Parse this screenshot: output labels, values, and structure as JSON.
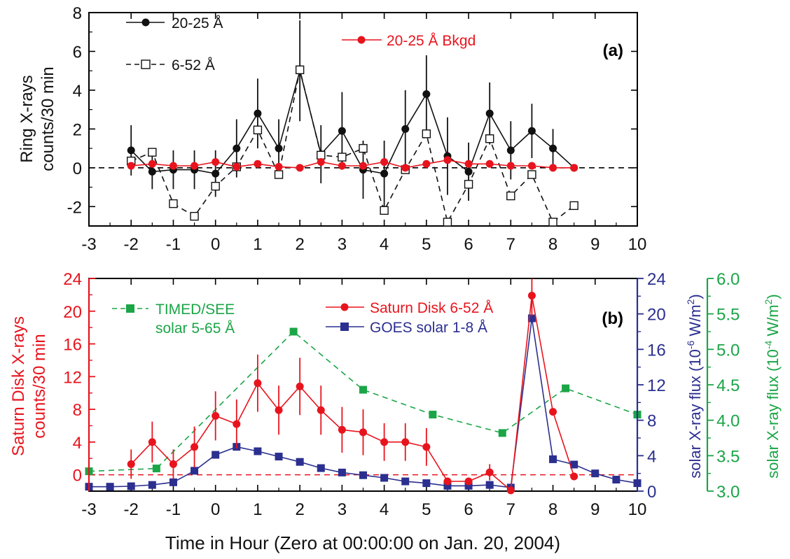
{
  "chart_data": [
    {
      "type": "line",
      "panel_label": "(a)",
      "ylabel": [
        "Ring X-rays",
        "counts/30 min"
      ],
      "xlim": [
        -3,
        10
      ],
      "ylim": [
        -3,
        8
      ],
      "xticks": [
        -3,
        -2,
        -1,
        0,
        1,
        2,
        3,
        4,
        5,
        6,
        7,
        8,
        9,
        10
      ],
      "yticks": [
        -2,
        0,
        2,
        4,
        6,
        8
      ],
      "zero_line": 0,
      "series": [
        {
          "name": "20-25 Å",
          "color": "#111111",
          "marker": "filled-circle",
          "dash": "solid",
          "x": [
            -2,
            -1.5,
            -1,
            -0.5,
            0,
            0.5,
            1,
            1.5,
            2,
            2.5,
            3,
            3.5,
            4,
            4.5,
            5,
            5.5,
            6,
            6.5,
            7,
            7.5,
            8,
            8.5
          ],
          "y": [
            0.9,
            -0.2,
            -0.1,
            -0.1,
            -0.3,
            1.0,
            2.8,
            1.0,
            5.0,
            0.7,
            1.9,
            -0.1,
            -0.3,
            2.0,
            3.8,
            0.6,
            -0.2,
            2.8,
            0.9,
            1.9,
            1.0,
            0.0
          ],
          "err": [
            1.3,
            0.9,
            1.0,
            1.0,
            1.2,
            1.5,
            1.8,
            1.5,
            2.6,
            1.5,
            2.0,
            1.5,
            1.7,
            2.0,
            2.0,
            2.0,
            1.5,
            1.6,
            1.5,
            1.4,
            1.0,
            0
          ]
        },
        {
          "name": "6-52 Å",
          "color": "#111111",
          "marker": "open-square",
          "dash": "dashed",
          "x": [
            -2,
            -1.5,
            -1,
            -0.5,
            0,
            0.5,
            1,
            1.5,
            2,
            2.5,
            3,
            3.5,
            4,
            4.5,
            5,
            5.5,
            6,
            6.5,
            7,
            7.5,
            8,
            8.5
          ],
          "y": [
            0.35,
            0.8,
            -1.85,
            -2.5,
            -0.95,
            0.05,
            1.95,
            -0.35,
            5.05,
            0.65,
            0.55,
            1.0,
            -2.2,
            -0.1,
            1.75,
            -2.8,
            -0.85,
            1.5,
            -1.45,
            -0.35,
            -2.8,
            -1.95
          ],
          "err": [
            0,
            0,
            0,
            0,
            0,
            0,
            0,
            0,
            0,
            0,
            0,
            0,
            0,
            0,
            0,
            0,
            0,
            0,
            0,
            0,
            0,
            0
          ]
        },
        {
          "name": "20-25 Å Bkgd",
          "color": "#e8141d",
          "marker": "filled-circle",
          "dash": "solid",
          "x": [
            -2,
            -1.5,
            -1,
            -0.5,
            0,
            0.5,
            1,
            1.5,
            2,
            2.5,
            3,
            3.5,
            4,
            4.5,
            5,
            5.5,
            6,
            6.5,
            7,
            7.5,
            8,
            8.5
          ],
          "y": [
            0.1,
            0.2,
            0.1,
            0.1,
            0.3,
            0.05,
            0.2,
            0.05,
            0.0,
            0.3,
            0.1,
            0.1,
            0.3,
            0.0,
            0.2,
            0.4,
            0.2,
            0.2,
            0.1,
            0.1,
            0.0,
            0.0
          ],
          "err": [
            0,
            0,
            0,
            0,
            0,
            0,
            0,
            0,
            0,
            0,
            0,
            0,
            0,
            0,
            0,
            0,
            0,
            0,
            0,
            0,
            0,
            0
          ]
        }
      ],
      "legend": [
        {
          "label": "20-25 Å",
          "series": 0,
          "position": "top-left"
        },
        {
          "label": "6-52 Å",
          "series": 1,
          "position": "top-left"
        },
        {
          "label": "20-25 Å Bkgd",
          "series": 2,
          "position": "top-center"
        }
      ]
    },
    {
      "type": "line",
      "panel_label": "(b)",
      "xlabel": "Time in Hour (Zero at  00:00:00 on Jan. 20, 2004)",
      "xlim": [
        -3,
        10
      ],
      "xticks": [
        -3,
        -2,
        -1,
        0,
        1,
        2,
        3,
        4,
        5,
        6,
        7,
        8,
        9,
        10
      ],
      "ylabel_left": [
        "Saturn Disk X-rays",
        "counts/30 min"
      ],
      "ylim_left": [
        -2,
        24
      ],
      "yticks_left": [
        0,
        4,
        8,
        12,
        16,
        20,
        24
      ],
      "ylabel_right1": "solar X-ray flux (10",
      "ylabel_right1_exp": "-6",
      "ylabel_right1_unit": " W/m",
      "ylim_right1": [
        0,
        24
      ],
      "yticks_right1": [
        0,
        4,
        8,
        12,
        16,
        20,
        24
      ],
      "ylabel_right2": "solar X-ray flux (10",
      "ylabel_right2_exp": "-4",
      "ylabel_right2_unit": " W/m",
      "ylim_right2": [
        3.0,
        6.0
      ],
      "yticks_right2": [
        "3.0",
        "3.5",
        "4.0",
        "4.5",
        "5.0",
        "5.5",
        "6.0"
      ],
      "zero_line": 0,
      "series": [
        {
          "name": "Saturn Disk 6-52 Å",
          "axis": "left",
          "color": "#e8141d",
          "marker": "filled-circle",
          "dash": "solid",
          "x": [
            -2,
            -1.5,
            -1,
            -0.5,
            0,
            0.5,
            1,
            1.5,
            2,
            2.5,
            3,
            3.5,
            4,
            4.5,
            5,
            5.5,
            6,
            6.5,
            7,
            7.5,
            8,
            8.5
          ],
          "y": [
            1.3,
            4.0,
            1.3,
            3.4,
            7.2,
            6.2,
            11.2,
            7.9,
            10.8,
            7.9,
            5.5,
            5.2,
            4.0,
            4.0,
            3.4,
            -0.8,
            -0.8,
            0.3,
            -1.9,
            21.9,
            7.7,
            -0.2
          ],
          "err": [
            1.8,
            2.5,
            1.8,
            2.5,
            3.0,
            3.0,
            3.5,
            3.0,
            3.5,
            3.0,
            2.8,
            2.8,
            2.3,
            2.3,
            2.3,
            0,
            0,
            1.0,
            0,
            2.5,
            0,
            0
          ]
        },
        {
          "name": "GOES solar 1-8 Å",
          "axis": "right1",
          "color": "#2b2f8f",
          "marker": "filled-square",
          "dash": "solid",
          "x": [
            -3,
            -2.5,
            -2,
            -1.5,
            -1,
            -0.5,
            0,
            0.5,
            1,
            1.5,
            2,
            2.5,
            3,
            3.5,
            4,
            4.5,
            5,
            5.5,
            6,
            6.5,
            7,
            7.5,
            8,
            8.5,
            9,
            9.5,
            10
          ],
          "y": [
            0.5,
            0.5,
            0.55,
            0.7,
            1.0,
            2.3,
            4.1,
            5.0,
            4.5,
            3.9,
            3.3,
            2.6,
            2.1,
            1.8,
            1.5,
            1.1,
            0.9,
            0.6,
            0.6,
            0.7,
            0.4,
            19.5,
            3.6,
            3.0,
            2.0,
            1.3,
            0.9
          ],
          "err": []
        },
        {
          "name": "TIMED/SEE",
          "legend_line2": "solar 5-65 Å",
          "axis": "right2",
          "color": "#1ba547",
          "marker": "filled-square",
          "dash": "dashed",
          "x": [
            -3,
            -1.4,
            1.85,
            3.5,
            5.15,
            6.8,
            8.3,
            10
          ],
          "y": [
            3.28,
            3.32,
            5.25,
            4.43,
            4.08,
            3.82,
            4.45,
            4.08
          ],
          "err": []
        }
      ],
      "legend": [
        {
          "label": "TIMED/SEE",
          "label2": "solar 5-65 Å",
          "series": 2,
          "position": "top-left"
        },
        {
          "label": "Saturn Disk 6-52 Å",
          "series": 0,
          "position": "top-right"
        },
        {
          "label": "GOES solar 1-8 Å",
          "series": 1,
          "position": "top-right"
        }
      ]
    }
  ]
}
